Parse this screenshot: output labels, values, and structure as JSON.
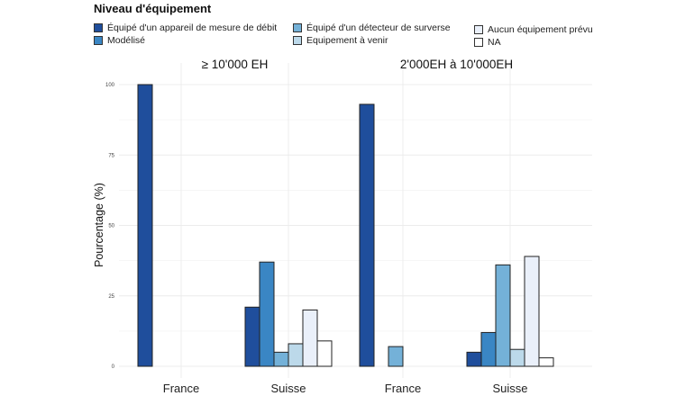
{
  "legend": {
    "title": "Niveau d'équipement",
    "items": [
      {
        "label": "Équipé d'un appareil de mesure de débit",
        "color": "#1f4e9c"
      },
      {
        "label": "Modélisé",
        "color": "#3a86c4"
      },
      {
        "label": "Équipé d'un détecteur de surverse",
        "color": "#74b1d8"
      },
      {
        "label": "Equipement à venir",
        "color": "#bcd9ea"
      },
      {
        "label": "Aucun équipement prévu",
        "color": "#eaf0fa"
      },
      {
        "label": "NA",
        "color": "#ffffff"
      }
    ]
  },
  "chart_data": {
    "type": "bar",
    "ylabel": "Pourcentage (%)",
    "xlabel": "",
    "ylim": [
      0,
      100
    ],
    "yticks": [
      0,
      25,
      50,
      75,
      100
    ],
    "grid": true,
    "legend_position": "top",
    "series_names": [
      "Équipé d'un appareil de mesure de débit",
      "Modélisé",
      "Équipé d'un détecteur de surverse",
      "Equipement à venir",
      "Aucun équipement prévu",
      "NA"
    ],
    "panels": [
      {
        "title": "≥ 10'000 EH",
        "categories": [
          "France",
          "Suisse"
        ],
        "values": [
          [
            100,
            0,
            0,
            0,
            0,
            0
          ],
          [
            21,
            37,
            5,
            8,
            20,
            9
          ]
        ]
      },
      {
        "title": "2'000EH à 10'000EH",
        "categories": [
          "France",
          "Suisse"
        ],
        "values": [
          [
            93,
            0,
            7,
            0,
            0,
            0
          ],
          [
            5,
            12,
            36,
            6,
            39,
            3
          ]
        ]
      }
    ]
  }
}
